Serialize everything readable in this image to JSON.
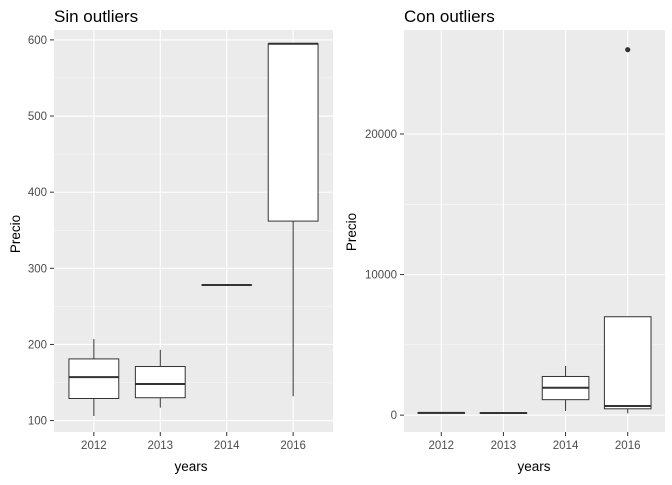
{
  "colors": {
    "panel_background": "#EBEBEB",
    "major_grid": "#FFFFFF",
    "minor_grid": "#F5F5F5",
    "box_fill": "#FFFFFF",
    "box_line": "#333333",
    "outlier": "#333333",
    "tick_text": "#4D4D4D",
    "title_text": "#000000"
  },
  "chart_data": [
    {
      "type": "box",
      "title": "Sin outliers",
      "xlabel": "years",
      "ylabel": "Precio",
      "categories": [
        "2012",
        "2013",
        "2014",
        "2016"
      ],
      "ylim": [
        85,
        613
      ],
      "yticks": [
        100,
        200,
        300,
        400,
        500,
        600
      ],
      "ytick_labels": [
        "100",
        "200",
        "300",
        "400",
        "500",
        "600"
      ],
      "grid": true,
      "boxes": [
        {
          "category": "2012",
          "min": 106,
          "q1": 129,
          "median": 157,
          "q3": 181,
          "max": 207
        },
        {
          "category": "2013",
          "min": 117,
          "q1": 130,
          "median": 148,
          "q3": 171,
          "max": 193
        },
        {
          "category": "2014",
          "min": 278,
          "q1": 278,
          "median": 278,
          "q3": 278,
          "max": 278
        },
        {
          "category": "2016",
          "min": 132,
          "q1": 362,
          "median": 595,
          "q3": 595,
          "max": 595
        }
      ],
      "outliers": []
    },
    {
      "type": "box",
      "title": "Con outliers",
      "xlabel": "years",
      "ylabel": "Precio",
      "categories": [
        "2012",
        "2013",
        "2014",
        "2016"
      ],
      "ylim": [
        -1200,
        27400
      ],
      "yticks": [
        0,
        10000,
        20000
      ],
      "ytick_labels": [
        "0",
        "10000",
        "20000"
      ],
      "grid": true,
      "boxes": [
        {
          "category": "2012",
          "min": 106,
          "q1": 129,
          "median": 157,
          "q3": 181,
          "max": 207
        },
        {
          "category": "2013",
          "min": 117,
          "q1": 130,
          "median": 148,
          "q3": 171,
          "max": 193
        },
        {
          "category": "2014",
          "min": 300,
          "q1": 1100,
          "median": 1950,
          "q3": 2750,
          "max": 3500
        },
        {
          "category": "2016",
          "min": 132,
          "q1": 450,
          "median": 650,
          "q3": 7000,
          "max": 7000
        }
      ],
      "outliers": [
        {
          "category": "2016",
          "value": 26000
        }
      ]
    }
  ]
}
